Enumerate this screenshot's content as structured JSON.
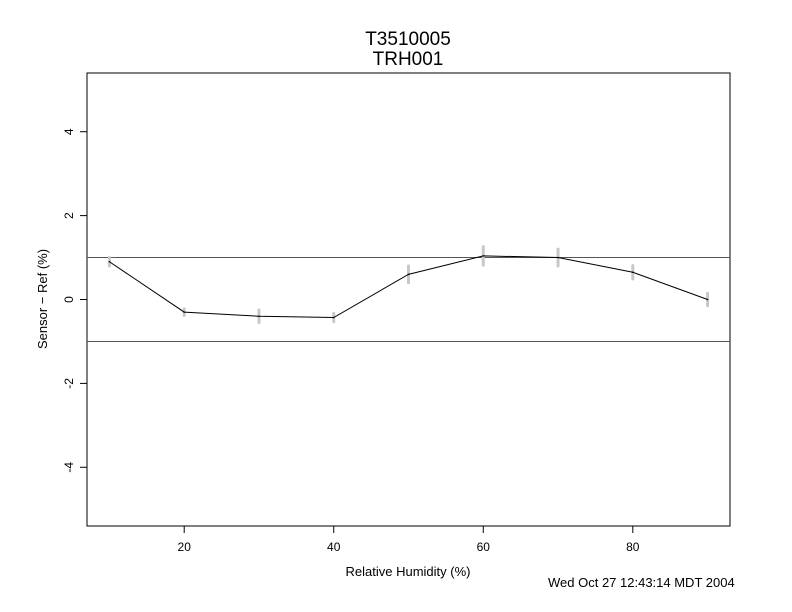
{
  "chart_data": {
    "type": "line",
    "title": "T3510005",
    "subtitle": "TRH001",
    "xlabel": "Relative Humidity (%)",
    "ylabel": "Sensor − Ref (%)",
    "xlim": [
      7,
      93
    ],
    "ylim": [
      -5.4,
      5.4
    ],
    "xticks": [
      20,
      40,
      60,
      80
    ],
    "yticks": [
      -4,
      -2,
      0,
      2,
      4
    ],
    "reference_lines": [
      1,
      -1
    ],
    "grid": false,
    "series": [
      {
        "x": [
          10,
          20,
          30,
          40,
          50,
          60,
          70,
          80,
          90
        ],
        "y": [
          0.9,
          -0.3,
          -0.4,
          -0.43,
          0.6,
          1.04,
          1.0,
          0.65,
          0.0
        ],
        "error_half": [
          0.1,
          0.08,
          0.15,
          0.1,
          0.2,
          0.22,
          0.2,
          0.16,
          0.15
        ]
      }
    ],
    "colors": {
      "line": "#000000",
      "error_bars": "#c8c8c8",
      "reference": "#555555"
    }
  },
  "footer": {
    "timestamp": "Wed Oct 27 12:43:14 MDT 2004"
  }
}
